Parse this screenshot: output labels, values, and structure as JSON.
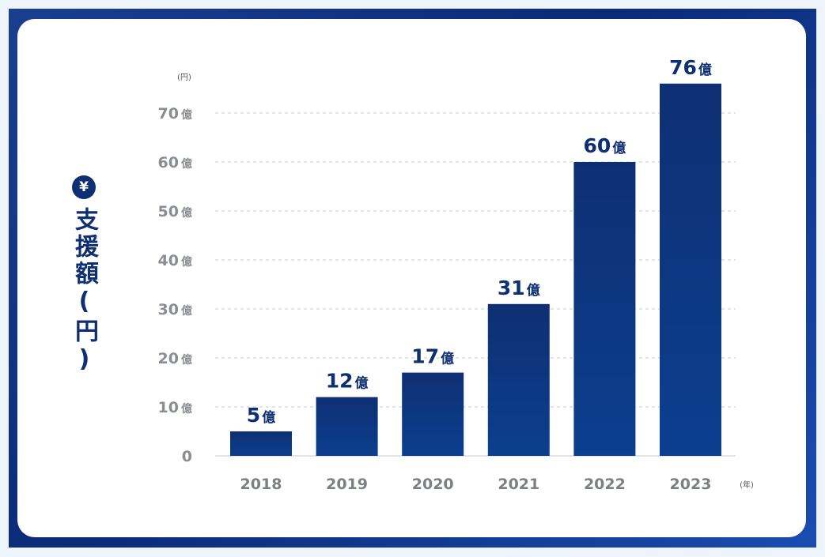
{
  "y_axis_label": "支援額(円)",
  "yen_symbol": "¥",
  "y_unit": "(円)",
  "x_unit": "(年)",
  "oku_suffix": "億",
  "colors": {
    "bar_top": "#0f2f73",
    "bar_bottom": "#0b3f8f",
    "text_dark": "#0f2f73",
    "tick_gray": "#8a8d92",
    "grid": "#c7c9cc"
  },
  "chart_data": {
    "type": "bar",
    "title": "",
    "xlabel": "(年)",
    "ylabel": "支援額(円)",
    "categories": [
      "2018",
      "2019",
      "2020",
      "2021",
      "2022",
      "2023"
    ],
    "values": [
      5,
      12,
      17,
      31,
      60,
      76
    ],
    "value_labels": [
      "5",
      "12",
      "17",
      "31",
      "60",
      "76"
    ],
    "ylim": [
      0,
      70
    ],
    "yticks": [
      0,
      10,
      20,
      30,
      40,
      50,
      60,
      70
    ],
    "ytick_labels": [
      "0",
      "10",
      "20",
      "30",
      "40",
      "50",
      "60",
      "70"
    ],
    "grid": "horizontal dashed"
  }
}
